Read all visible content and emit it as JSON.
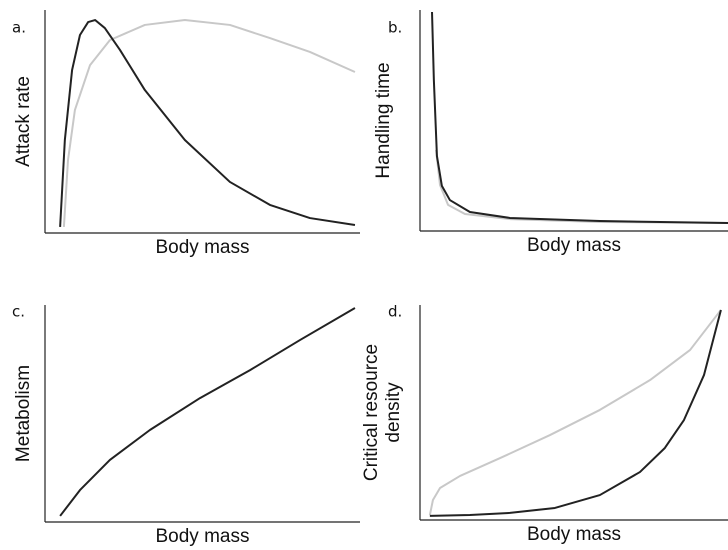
{
  "chart_data": [
    {
      "type": "line",
      "label": "a.",
      "xlabel": "Body mass",
      "ylabel": [
        "Attack rate"
      ],
      "xlim": [
        0,
        100
      ],
      "ylim": [
        0,
        100
      ],
      "series": [
        {
          "color": "#c8c8c8",
          "x": [
            6.0,
            7.3,
            9.5,
            14.3,
            20.6,
            31.7,
            44.4,
            58.7,
            71.4,
            84.1,
            98.4
          ],
          "values": [
            2.7,
            32.7,
            55.2,
            75.3,
            86.5,
            93.3,
            95.5,
            93.3,
            87.4,
            81.2,
            72.2
          ]
        },
        {
          "color": "#222222",
          "x": [
            4.8,
            6.3,
            8.6,
            11.1,
            13.7,
            15.9,
            19.0,
            23.8,
            31.7,
            44.4,
            58.7,
            71.4,
            84.1,
            98.4
          ],
          "values": [
            2.7,
            41.7,
            73.1,
            88.8,
            94.6,
            95.5,
            91.9,
            82.1,
            64.1,
            41.7,
            22.9,
            12.6,
            6.7,
            3.6
          ]
        }
      ]
    },
    {
      "type": "line",
      "label": "b.",
      "xlabel": "Body mass",
      "ylabel": [
        "Handling time"
      ],
      "xlim": [
        0,
        100
      ],
      "ylim": [
        0,
        100
      ],
      "series": [
        {
          "color": "#c8c8c8",
          "x": [
            5.2,
            6.5,
            9.1,
            14.6,
            29.2,
            58.4,
            100
          ],
          "values": [
            36.7,
            20.8,
            11.8,
            7.7,
            5.4,
            4.1,
            3.6
          ]
        },
        {
          "color": "#222222",
          "x": [
            3.9,
            4.5,
            5.5,
            7.1,
            9.7,
            16.2,
            29.2,
            58.4,
            100
          ],
          "values": [
            99.1,
            68.3,
            33.9,
            20.4,
            14.0,
            8.6,
            5.9,
            4.5,
            3.6
          ]
        }
      ]
    },
    {
      "type": "line",
      "label": "c.",
      "xlabel": "Body mass",
      "ylabel": [
        "Metabolism"
      ],
      "xlim": [
        0,
        100
      ],
      "ylim": [
        0,
        100
      ],
      "series": [
        {
          "color": "#222222",
          "x": [
            4.8,
            11.1,
            20.6,
            33.3,
            49.2,
            65.1,
            81.0,
            98.4
          ],
          "values": [
            2.8,
            14.7,
            28.6,
            42.4,
            57.1,
            70.0,
            83.9,
            98.6
          ]
        }
      ]
    },
    {
      "type": "line",
      "label": "d.",
      "xlabel": "Body mass",
      "ylabel": [
        "Critical resource",
        "density"
      ],
      "xlim": [
        0,
        100
      ],
      "ylim": [
        0,
        100
      ],
      "series": [
        {
          "color": "#c8c8c8",
          "x": [
            3.2,
            4.2,
            6.5,
            13.0,
            26.0,
            42.2,
            58.4,
            74.7,
            87.7,
            97.7
          ],
          "values": [
            2.3,
            9.3,
            14.9,
            20.5,
            28.8,
            39.5,
            51.2,
            65.1,
            79.1,
            97.7
          ]
        },
        {
          "color": "#222222",
          "x": [
            3.2,
            16.2,
            29.2,
            43.8,
            58.4,
            71.4,
            79.5,
            85.7,
            92.2,
            97.7
          ],
          "values": [
            1.9,
            2.3,
            3.3,
            5.6,
            11.6,
            22.3,
            33.5,
            46.5,
            67.4,
            97.7
          ]
        }
      ]
    }
  ]
}
